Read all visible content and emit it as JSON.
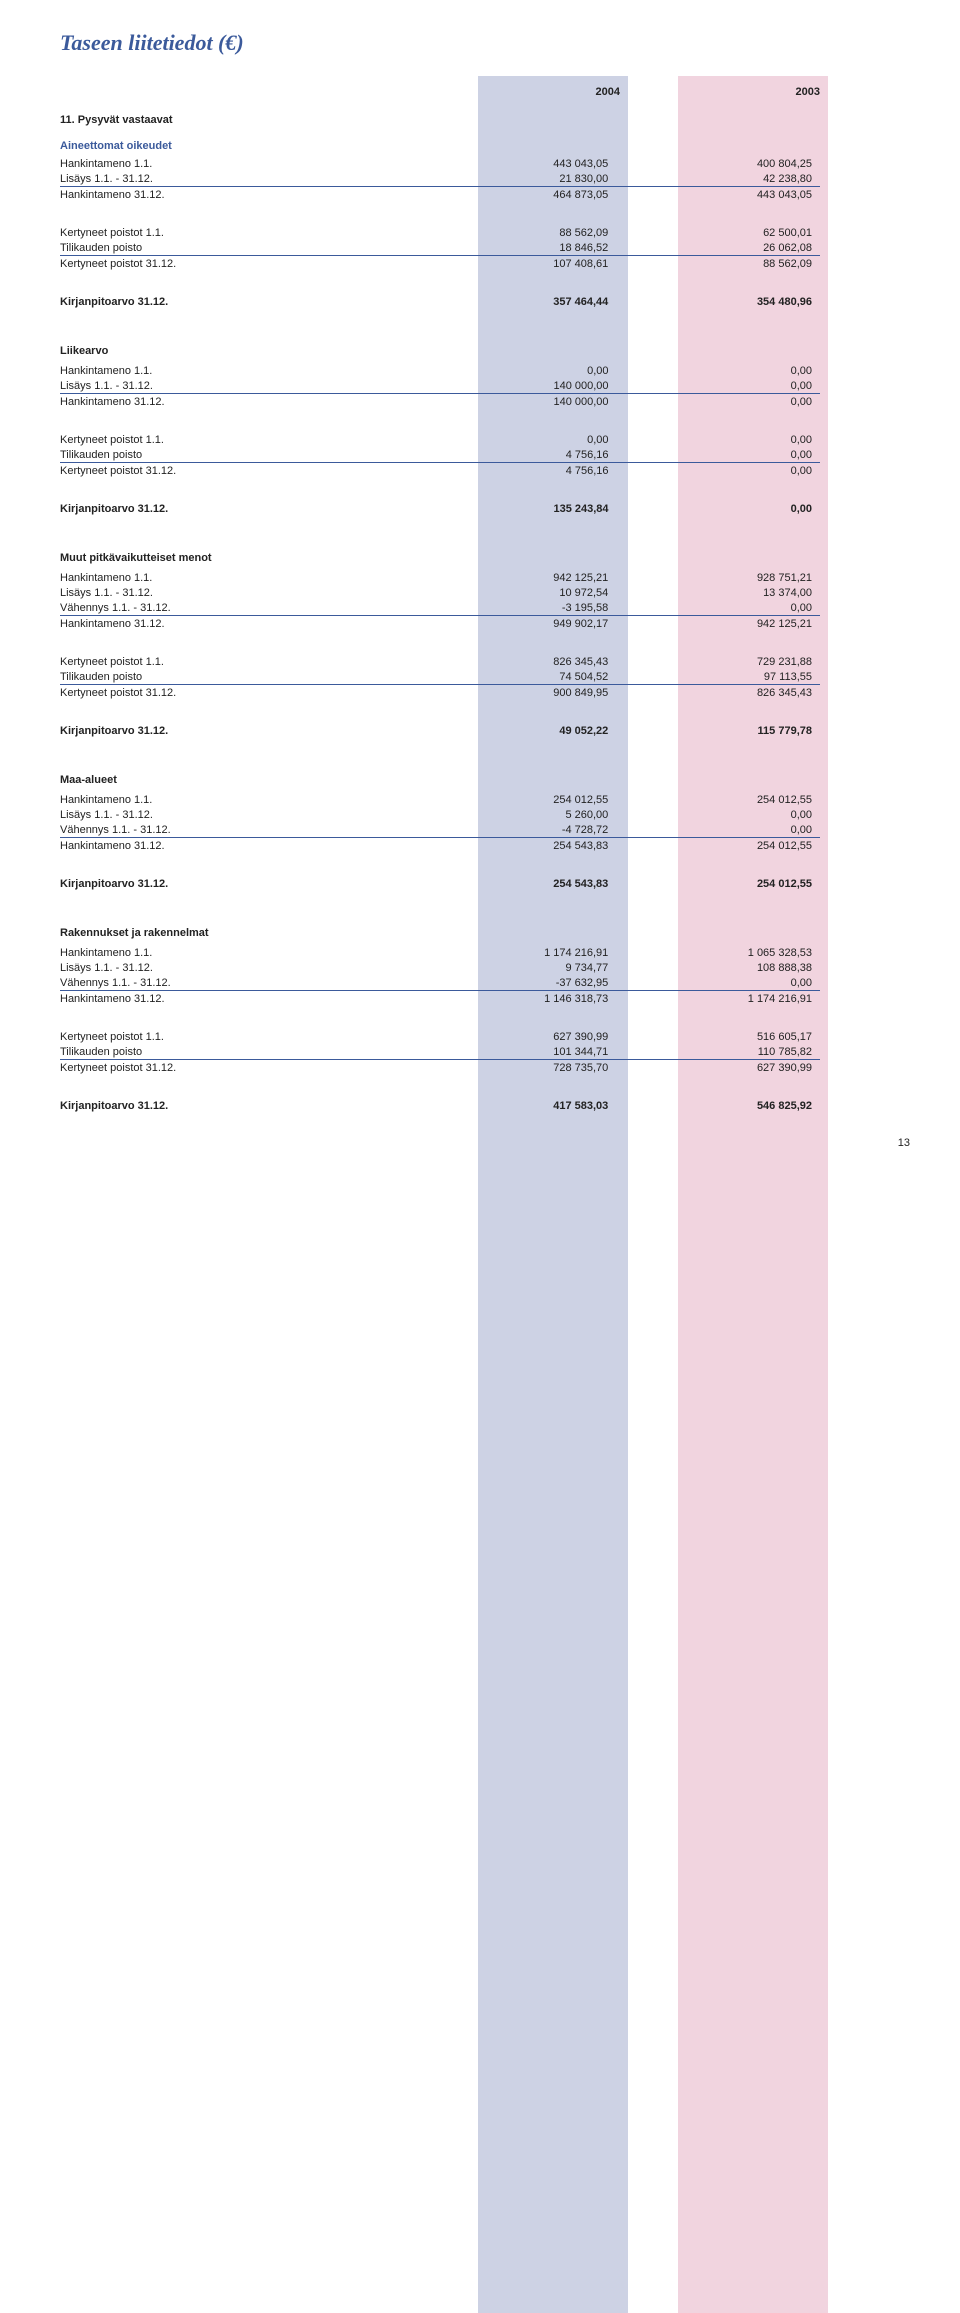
{
  "page_title": "Taseen liitetiedot (€)",
  "year_a": "2004",
  "year_b": "2003",
  "page_number": "13",
  "colors": {
    "accent": "#3b5a9b",
    "col_a_bg": "#cdd2e4",
    "col_b_bg": "#f1d4df"
  },
  "sec11": {
    "heading": "11. Pysyvät vastaavat"
  },
  "aineettomat": {
    "title": "Aineettomat oikeudet",
    "r1": {
      "l": "Hankintameno 1.1.",
      "a": "443 043,05",
      "b": "400 804,25"
    },
    "r2": {
      "l": "Lisäys 1.1. - 31.12.",
      "a": "21 830,00",
      "b": "42 238,80"
    },
    "r3": {
      "l": "Hankintameno 31.12.",
      "a": "464 873,05",
      "b": "443 043,05"
    },
    "r4": {
      "l": "Kertyneet poistot 1.1.",
      "a": "88 562,09",
      "b": "62 500,01"
    },
    "r5": {
      "l": "Tilikauden poisto",
      "a": "18 846,52",
      "b": "26 062,08"
    },
    "r6": {
      "l": "Kertyneet poistot 31.12.",
      "a": "107 408,61",
      "b": "88 562,09"
    },
    "r7": {
      "l": "Kirjanpitoarvo 31.12.",
      "a": "357 464,44",
      "b": "354 480,96"
    }
  },
  "liikearvo": {
    "title": "Liikearvo",
    "r1": {
      "l": "Hankintameno 1.1.",
      "a": "0,00",
      "b": "0,00"
    },
    "r2": {
      "l": "Lisäys 1.1. - 31.12.",
      "a": "140 000,00",
      "b": "0,00"
    },
    "r3": {
      "l": "Hankintameno 31.12.",
      "a": "140 000,00",
      "b": "0,00"
    },
    "r4": {
      "l": "Kertyneet poistot 1.1.",
      "a": "0,00",
      "b": "0,00"
    },
    "r5": {
      "l": "Tilikauden poisto",
      "a": "4 756,16",
      "b": "0,00"
    },
    "r6": {
      "l": "Kertyneet poistot 31.12.",
      "a": "4 756,16",
      "b": "0,00"
    },
    "r7": {
      "l": "Kirjanpitoarvo 31.12.",
      "a": "135 243,84",
      "b": "0,00"
    }
  },
  "muu": {
    "title": "Muut pitkävaikutteiset menot",
    "r1": {
      "l": "Hankintameno 1.1.",
      "a": "942 125,21",
      "b": "928 751,21"
    },
    "r2": {
      "l": "Lisäys 1.1. - 31.12.",
      "a": "10 972,54",
      "b": "13 374,00"
    },
    "r3": {
      "l": "Vähennys 1.1. - 31.12.",
      "a": "-3 195,58",
      "b": "0,00"
    },
    "r4": {
      "l": "Hankintameno 31.12.",
      "a": "949 902,17",
      "b": "942 125,21"
    },
    "r5": {
      "l": "Kertyneet poistot 1.1.",
      "a": "826 345,43",
      "b": "729 231,88"
    },
    "r6": {
      "l": "Tilikauden poisto",
      "a": "74 504,52",
      "b": "97 113,55"
    },
    "r7": {
      "l": "Kertyneet poistot 31.12.",
      "a": "900 849,95",
      "b": "826 345,43"
    },
    "r8": {
      "l": "Kirjanpitoarvo 31.12.",
      "a": "49 052,22",
      "b": "115 779,78"
    }
  },
  "maa": {
    "title": "Maa-alueet",
    "r1": {
      "l": "Hankintameno 1.1.",
      "a": "254 012,55",
      "b": "254 012,55"
    },
    "r2": {
      "l": "Lisäys 1.1. - 31.12.",
      "a": "5 260,00",
      "b": "0,00"
    },
    "r3": {
      "l": "Vähennys 1.1. - 31.12.",
      "a": "-4 728,72",
      "b": "0,00"
    },
    "r4": {
      "l": "Hankintameno 31.12.",
      "a": "254 543,83",
      "b": "254 012,55"
    },
    "r5": {
      "l": "Kirjanpitoarvo 31.12.",
      "a": "254 543,83",
      "b": "254 012,55"
    }
  },
  "rak": {
    "title": "Rakennukset ja rakennelmat",
    "r1": {
      "l": "Hankintameno 1.1.",
      "a": "1 174 216,91",
      "b": "1 065 328,53"
    },
    "r2": {
      "l": "Lisäys 1.1. - 31.12.",
      "a": "9 734,77",
      "b": "108 888,38"
    },
    "r3": {
      "l": "Vähennys 1.1. - 31.12.",
      "a": "-37 632,95",
      "b": "0,00"
    },
    "r4": {
      "l": "Hankintameno 31.12.",
      "a": "1 146 318,73",
      "b": "1 174 216,91"
    },
    "r5": {
      "l": "Kertyneet poistot 1.1.",
      "a": "627 390,99",
      "b": "516 605,17"
    },
    "r6": {
      "l": "Tilikauden poisto",
      "a": "101 344,71",
      "b": "110 785,82"
    },
    "r7": {
      "l": "Kertyneet poistot 31.12.",
      "a": "728 735,70",
      "b": "627 390,99"
    },
    "r8": {
      "l": "Kirjanpitoarvo 31.12.",
      "a": "417 583,03",
      "b": "546 825,92"
    }
  }
}
